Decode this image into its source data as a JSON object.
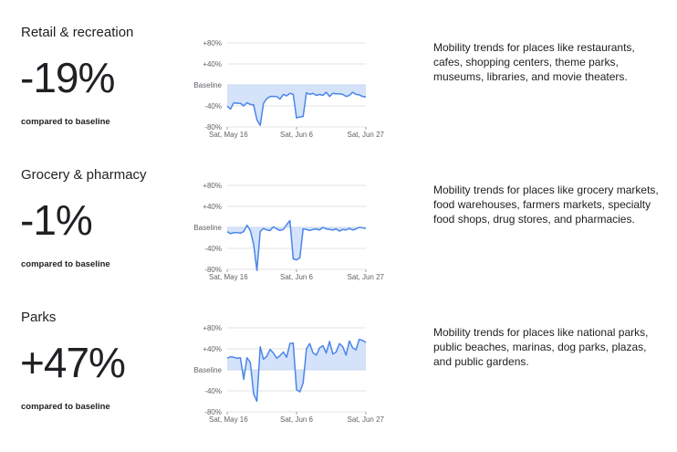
{
  "chart_data": [
    {
      "type": "line",
      "title": "Retail & recreation",
      "headline": "-19%",
      "headline_caption": "compared to baseline",
      "description": "Mobility trends for places like restaurants, cafes, shopping centers, theme parks, museums, libraries, and movie theaters.",
      "y_tick_labels": [
        "+80%",
        "+40%",
        "Baseline",
        "-40%",
        "-80%"
      ],
      "y_ticks": [
        80,
        40,
        0,
        -40,
        -80
      ],
      "ylim": [
        -80,
        80
      ],
      "x_tick_labels": [
        "Sat, May 16",
        "Sat, Jun 6",
        "Sat, Jun 27"
      ],
      "x_tick_positions": [
        0,
        21,
        42
      ],
      "grid": true,
      "line_color": "#4a86e8",
      "fill_color": "#d5e3fa",
      "values": [
        -40,
        -46,
        -34,
        -35,
        -35,
        -40,
        -34,
        -37,
        -38,
        -66,
        -77,
        -35,
        -26,
        -22,
        -22,
        -22,
        -27,
        -18,
        -21,
        -16,
        -18,
        -63,
        -61,
        -60,
        -15,
        -18,
        -16,
        -20,
        -18,
        -20,
        -14,
        -22,
        -16,
        -17,
        -17,
        -18,
        -22,
        -20,
        -14,
        -18,
        -19,
        -22,
        -23
      ]
    },
    {
      "type": "line",
      "title": "Grocery & pharmacy",
      "headline": "-1%",
      "headline_caption": "compared to baseline",
      "description": "Mobility trends for places like grocery markets, food warehouses, farmers markets, specialty food shops, drug stores, and pharmacies.",
      "y_tick_labels": [
        "+80%",
        "+40%",
        "Baseline",
        "-40%",
        "-80%"
      ],
      "y_ticks": [
        80,
        40,
        0,
        -40,
        -80
      ],
      "ylim": [
        -80,
        80
      ],
      "x_tick_labels": [
        "Sat, May 16",
        "Sat, Jun 6",
        "Sat, Jun 27"
      ],
      "x_tick_positions": [
        0,
        21,
        42
      ],
      "grid": true,
      "line_color": "#4a86e8",
      "fill_color": "#d5e3fa",
      "values": [
        -8,
        -12,
        -10,
        -10,
        -11,
        -8,
        4,
        -6,
        -32,
        -82,
        -8,
        -2,
        -5,
        -6,
        1,
        -3,
        -6,
        -4,
        5,
        13,
        -60,
        -62,
        -58,
        -3,
        -4,
        -6,
        -4,
        -3,
        -5,
        0,
        -3,
        -4,
        -5,
        -3,
        -7,
        -4,
        -5,
        -2,
        -5,
        -3,
        0,
        -1,
        -2
      ]
    },
    {
      "type": "line",
      "title": "Parks",
      "headline": "+47%",
      "headline_caption": "compared to baseline",
      "description": "Mobility trends for places like national parks, public beaches, marinas, dog parks, plazas, and public gardens.",
      "y_tick_labels": [
        "+80%",
        "+40%",
        "Baseline",
        "-40%",
        "-80%"
      ],
      "y_ticks": [
        80,
        40,
        0,
        -40,
        -80
      ],
      "ylim": [
        -80,
        80
      ],
      "x_tick_labels": [
        "Sat, May 16",
        "Sat, Jun 6",
        "Sat, Jun 27"
      ],
      "x_tick_positions": [
        0,
        21,
        42
      ],
      "grid": true,
      "line_color": "#4a86e8",
      "fill_color": "#d5e3fa",
      "values": [
        22,
        25,
        24,
        22,
        23,
        -18,
        23,
        14,
        -46,
        -60,
        44,
        20,
        26,
        39,
        32,
        22,
        27,
        34,
        24,
        50,
        51,
        -38,
        -42,
        -25,
        40,
        50,
        32,
        28,
        42,
        46,
        32,
        54,
        30,
        34,
        50,
        44,
        28,
        55,
        42,
        38,
        58,
        56,
        52
      ]
    }
  ]
}
